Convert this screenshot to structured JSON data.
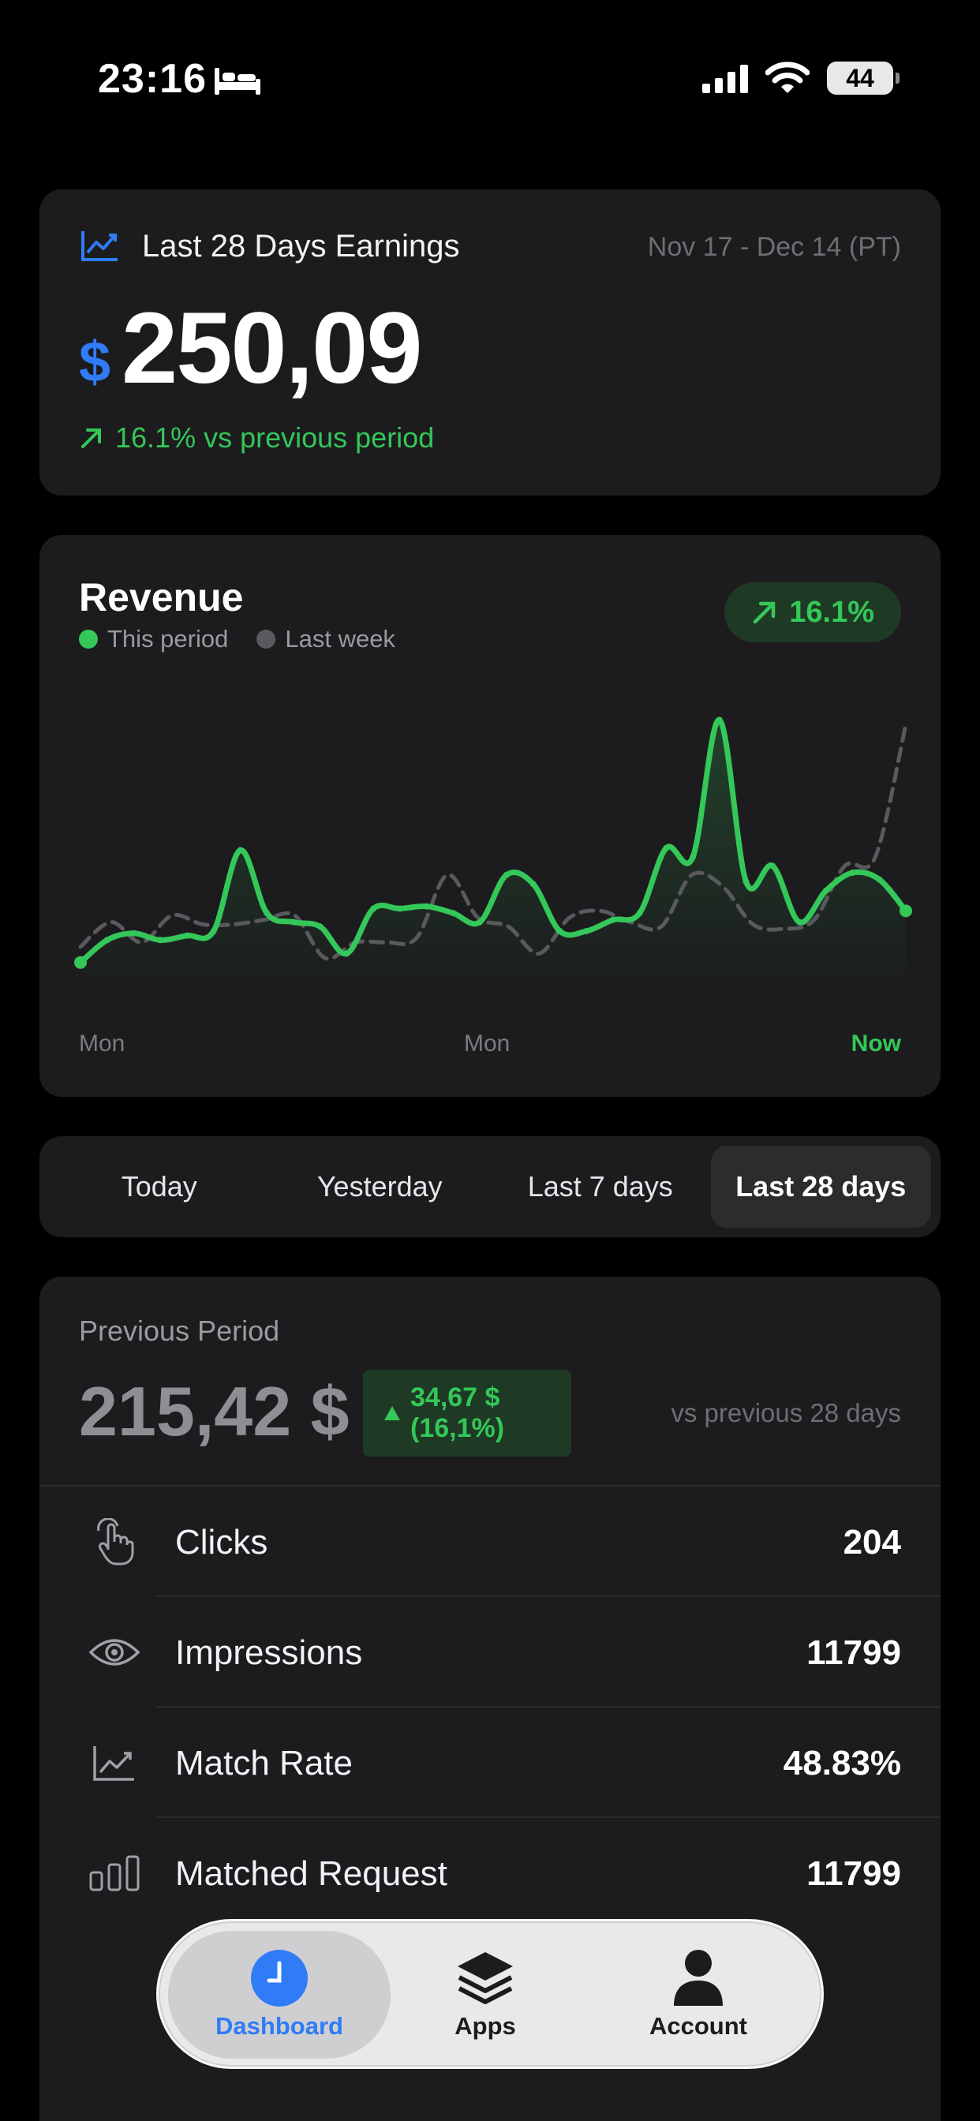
{
  "status_bar": {
    "time": "23:16",
    "battery": "44"
  },
  "earnings": {
    "title": "Last 28 Days Earnings",
    "date_range": "Nov 17 - Dec 14 (PT)",
    "currency": "$",
    "amount": "250,09",
    "change_text": "16.1% vs previous period",
    "accent_color": "#2f7cf6",
    "positive_color": "#34c759"
  },
  "revenue": {
    "title": "Revenue",
    "legend": [
      {
        "label": "This period",
        "color": "#34c759"
      },
      {
        "label": "Last week",
        "color": "#5a5a5e"
      }
    ],
    "badge": "16.1%",
    "x_labels": [
      "Mon",
      "Mon",
      "Now"
    ]
  },
  "chart_data": {
    "type": "line",
    "x_tick_labels": [
      "Mon",
      "Mon",
      "Now"
    ],
    "series": [
      {
        "name": "This period",
        "style": "solid",
        "values": [
          12,
          22,
          25,
          22,
          24,
          26,
          62,
          34,
          30,
          28,
          16,
          36,
          36,
          37,
          34,
          30,
          51,
          47,
          26,
          26,
          31,
          34,
          63,
          59,
          120,
          48,
          55,
          30,
          44,
          52,
          49,
          35
        ]
      },
      {
        "name": "Last week",
        "style": "dashed",
        "values": [
          19,
          30,
          21,
          33,
          29,
          29,
          31,
          33,
          14,
          21,
          21,
          23,
          51,
          32,
          28,
          16,
          32,
          35,
          30,
          28,
          51,
          46,
          29,
          27,
          31,
          55,
          59,
          118
        ]
      }
    ],
    "ylim": [
      0,
      130
    ]
  },
  "periods": {
    "options": [
      "Today",
      "Yesterday",
      "Last 7 days",
      "Last 28 days"
    ],
    "active": "Last 28 days"
  },
  "previous": {
    "label": "Previous Period",
    "amount": "215,42 $",
    "change_line1": "34,67 $",
    "change_line2": "(16,1%)",
    "vs_text": "vs previous 28 days"
  },
  "metrics": [
    {
      "icon": "hand-tap-icon",
      "name": "Clicks",
      "value": "204"
    },
    {
      "icon": "eye-icon",
      "name": "Impressions",
      "value": "11799"
    },
    {
      "icon": "chart-line-up-icon",
      "name": "Match Rate",
      "value": "48.83%"
    },
    {
      "icon": "bar-chart-icon",
      "name": "Matched Request",
      "value": "11799"
    }
  ],
  "tabs": [
    {
      "label": "Dashboard",
      "icon": "clock-icon",
      "active": true
    },
    {
      "label": "Apps",
      "icon": "layers-icon",
      "active": false
    },
    {
      "label": "Account",
      "icon": "person-icon",
      "active": false
    }
  ]
}
